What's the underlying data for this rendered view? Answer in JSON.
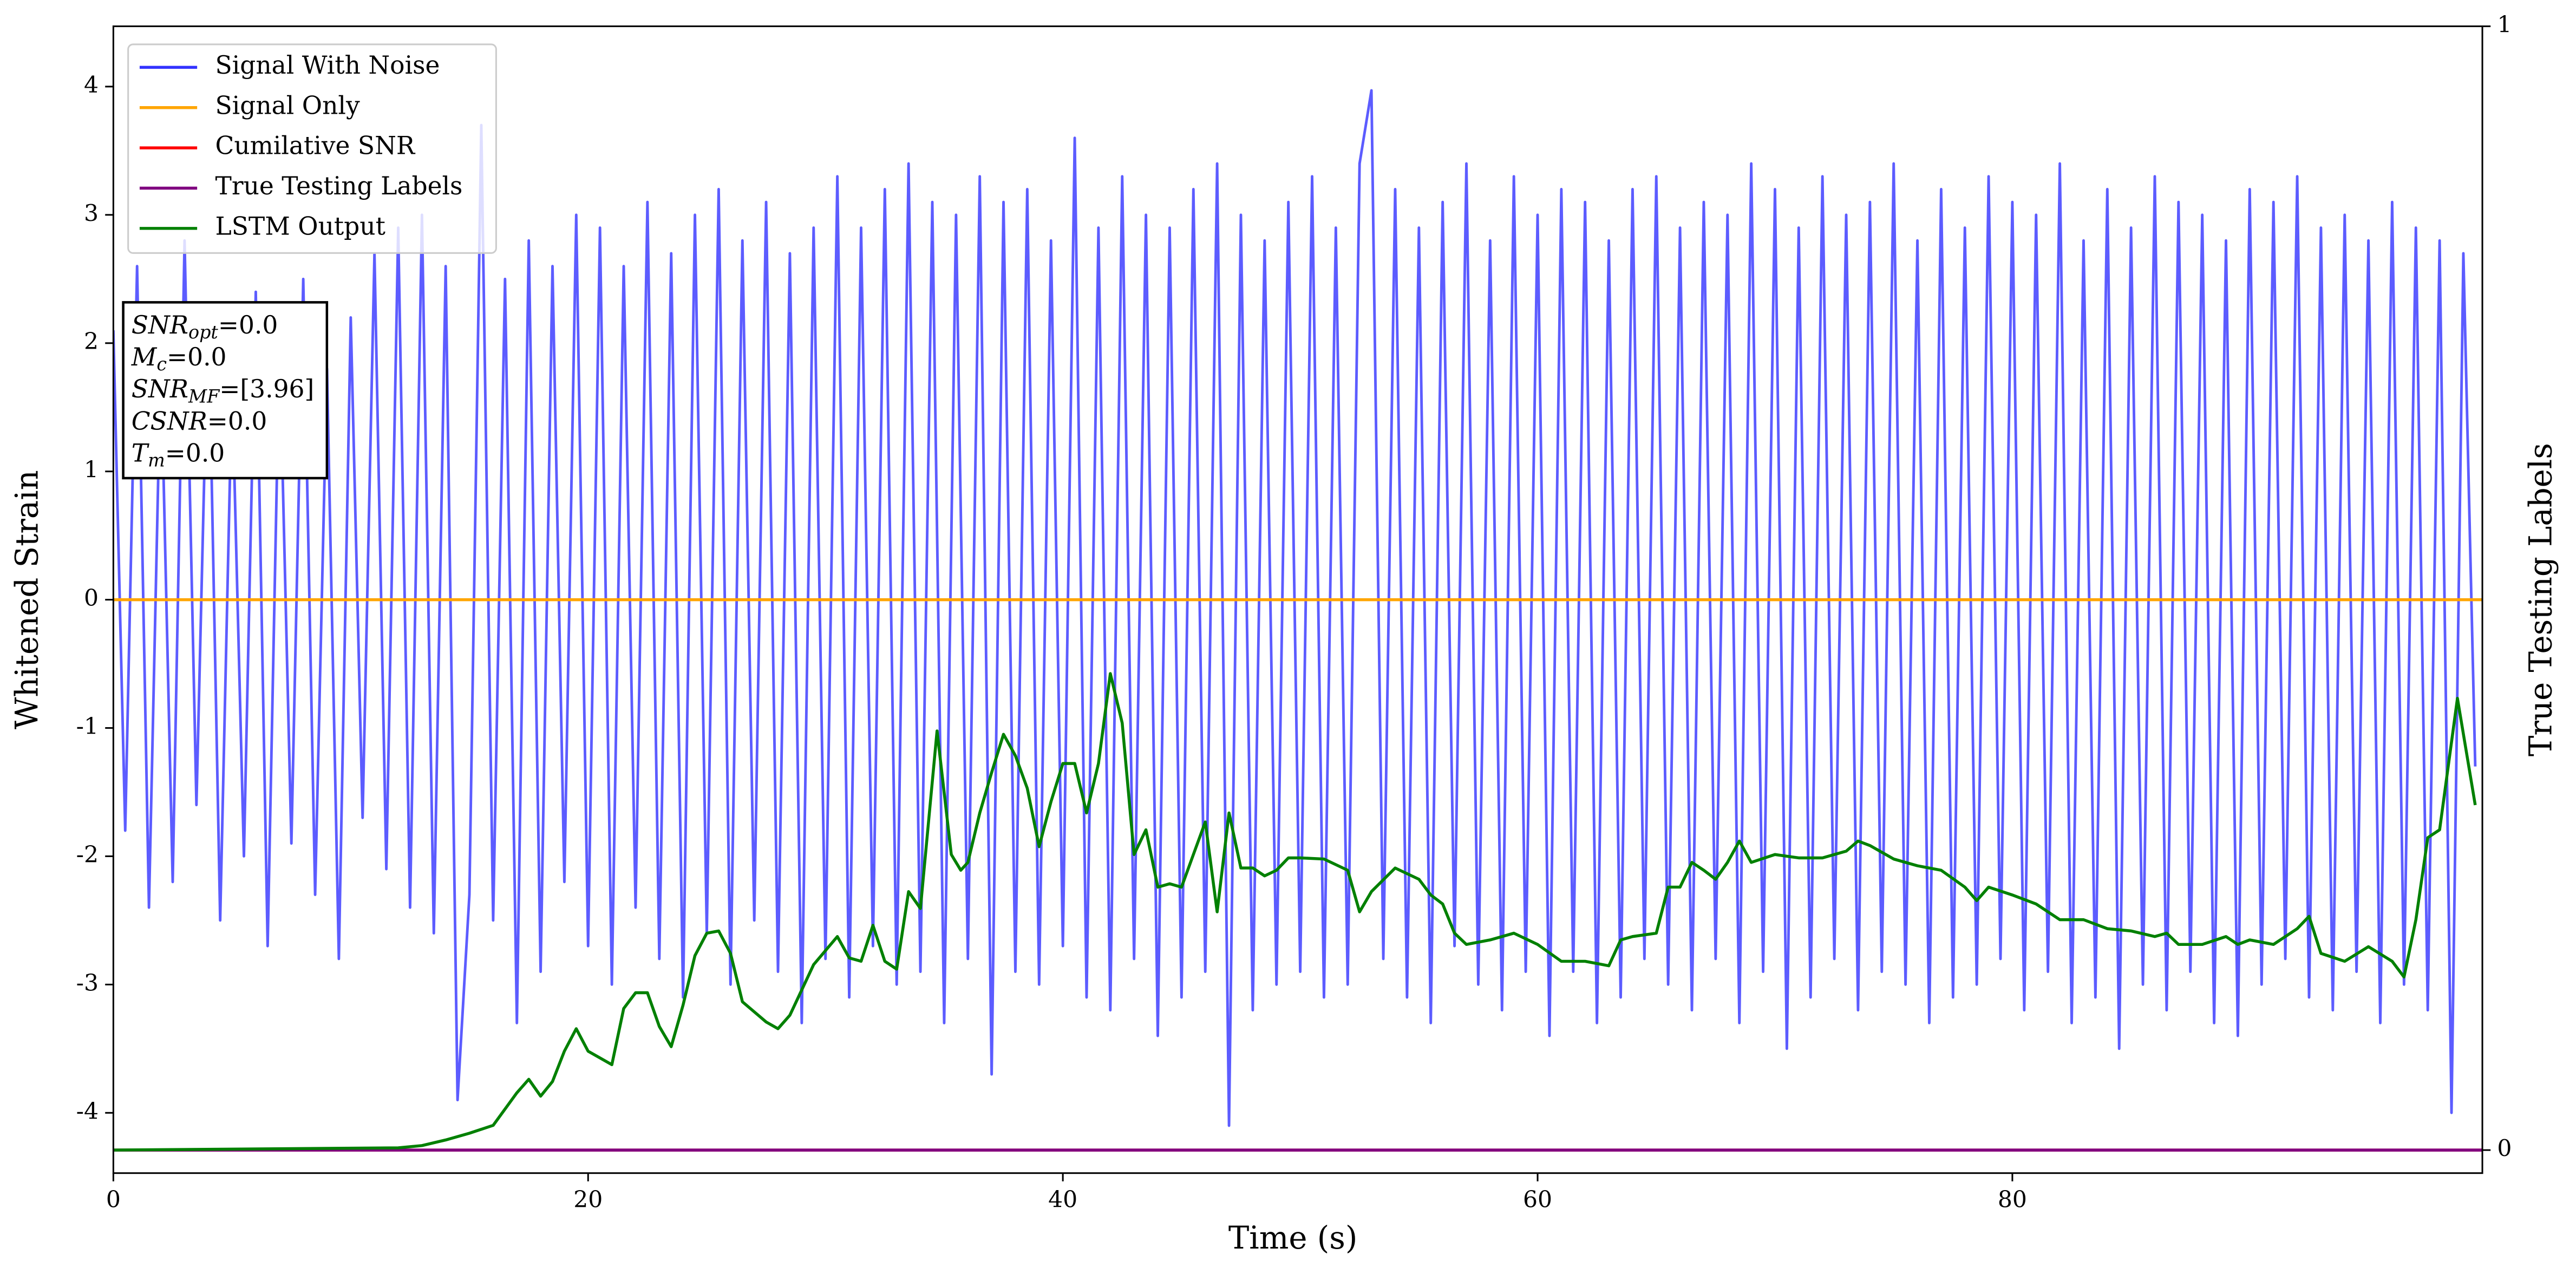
{
  "chart_data": {
    "type": "line",
    "xlabel": "Time (s)",
    "ylabel": "Whitened Strain",
    "y2label": "True Testing Labels",
    "xlim": [
      0,
      99.8
    ],
    "xticks": [
      0,
      20,
      40,
      60,
      80
    ],
    "ylim": [
      -4.47,
      4.47
    ],
    "yticks": [
      -4,
      -3,
      -2,
      -1,
      0,
      1,
      2,
      3,
      4
    ],
    "y2lim": [
      -0.0205,
      1
    ],
    "y2ticks": [
      0,
      1
    ],
    "legend": "upper left",
    "annotation_box": [
      {
        "text": "SNR",
        "sub": "opt",
        "suffix": "=0.0"
      },
      {
        "text": "M",
        "sub": "c",
        "suffix": "=0.0"
      },
      {
        "text": "SNR",
        "sub": "MF",
        "suffix": "=[3.96]"
      },
      {
        "text": "CSNR",
        "suffix": "=0.0"
      },
      {
        "text": "T",
        "sub": "m",
        "suffix": "=0.0"
      }
    ],
    "series": [
      {
        "name": "Signal With Noise",
        "color": "#3333ff",
        "step_x": 0.5,
        "values": [
          2.1,
          -1.8,
          2.6,
          -2.4,
          1.9,
          -2.2,
          2.8,
          -1.6,
          2.3,
          -2.5,
          1.7,
          -2.0,
          2.4,
          -2.7,
          2.0,
          -1.9,
          2.5,
          -2.3,
          1.8,
          -2.8,
          2.2,
          -1.7,
          2.7,
          -2.1,
          2.9,
          -2.4,
          3.0,
          -2.6,
          2.6,
          -3.9,
          -2.3,
          3.7,
          -2.5,
          2.5,
          -3.3,
          2.8,
          -2.9,
          2.6,
          -2.2,
          3.0,
          -2.7,
          2.9,
          -3.0,
          2.6,
          -2.4,
          3.1,
          -2.8,
          2.7,
          -3.1,
          3.0,
          -2.6,
          3.2,
          -3.0,
          2.8,
          -2.5,
          3.1,
          -2.9,
          2.7,
          -3.3,
          2.9,
          -2.8,
          3.3,
          -3.1,
          2.9,
          -2.7,
          3.2,
          -3.0,
          3.4,
          -2.9,
          3.1,
          -3.3,
          3.0,
          -2.8,
          3.3,
          -3.7,
          3.1,
          -2.9,
          3.2,
          -3.0,
          2.8,
          -2.7,
          3.6,
          -3.1,
          2.9,
          -3.2,
          3.3,
          -2.8,
          3.0,
          -3.4,
          2.9,
          -3.1,
          3.2,
          -2.9,
          3.4,
          -4.1,
          3.0,
          -3.2,
          2.8,
          -3.0,
          3.1,
          -2.9,
          3.3,
          -3.1,
          2.9,
          -3.0,
          3.4,
          3.97,
          -2.8,
          3.2,
          -3.1,
          2.9,
          -3.3,
          3.1,
          -2.7,
          3.4,
          -3.0,
          2.8,
          -3.2,
          3.3,
          -2.9,
          3.0,
          -3.4,
          3.2,
          -2.9,
          3.1,
          -3.3,
          2.8,
          -3.1,
          3.2,
          -2.8,
          3.3,
          -3.0,
          2.9,
          -3.2,
          3.1,
          -2.8,
          3.0,
          -3.3,
          3.4,
          -2.9,
          3.2,
          -3.5,
          2.9,
          -3.1,
          3.3,
          -2.8,
          3.0,
          -3.2,
          3.1,
          -2.9,
          3.4,
          -3.0,
          2.8,
          -3.3,
          3.2,
          -3.1,
          2.9,
          -3.0,
          3.3,
          -2.8,
          3.1,
          -3.2,
          3.0,
          -2.9,
          3.4,
          -3.3,
          2.8,
          -3.1,
          3.2,
          -3.5,
          2.9,
          -3.0,
          3.3,
          -3.2,
          3.1,
          -2.9,
          3.0,
          -3.3,
          2.8,
          -3.4,
          3.2,
          -3.0,
          3.1,
          -2.8,
          3.3,
          -3.1,
          2.9,
          -3.2,
          3.0,
          -2.9,
          2.8,
          -3.3,
          3.1,
          -3.0,
          2.9,
          -3.2,
          2.8,
          -4.0,
          2.7,
          -1.3
        ]
      },
      {
        "name": "Signal Only",
        "color": "#ffa500",
        "x": [
          0,
          99.8
        ],
        "values": [
          0,
          0
        ]
      },
      {
        "name": "Cumilative SNR",
        "color": "#ff0000",
        "axis": "y2",
        "x": [
          0,
          99.8
        ],
        "values": [
          0,
          0
        ]
      },
      {
        "name": "True Testing Labels",
        "color": "#800080",
        "axis": "y2",
        "x": [
          0,
          99.8
        ],
        "values": [
          0,
          0
        ]
      },
      {
        "name": "LSTM Output",
        "color": "#008000",
        "axis": "y2",
        "x": [
          0,
          12,
          13,
          14,
          15,
          16,
          17,
          17.5,
          18,
          18.5,
          19,
          19.5,
          20,
          21,
          21.5,
          22,
          22.5,
          23,
          23.5,
          24,
          24.5,
          25,
          25.5,
          26,
          26.5,
          27.5,
          28,
          28.5,
          29.5,
          30.5,
          31,
          31.5,
          32,
          32.5,
          33,
          33.5,
          34,
          34.7,
          35.3,
          35.7,
          36,
          36.5,
          37,
          37.5,
          38,
          38.5,
          39,
          39.5,
          40,
          40.5,
          41,
          41.5,
          42,
          42.5,
          43,
          43.5,
          44,
          44.5,
          45,
          45.5,
          46,
          46.5,
          47,
          47.5,
          48,
          48.5,
          49,
          49.5,
          50,
          51,
          52,
          52.5,
          53,
          54,
          55,
          55.5,
          56,
          56.5,
          57,
          58,
          59,
          60,
          61,
          62,
          63,
          63.5,
          64,
          65,
          65.5,
          66,
          66.5,
          67,
          67.5,
          68,
          68.5,
          69,
          70,
          71,
          72,
          73,
          73.5,
          74,
          75,
          76,
          77,
          78,
          78.5,
          79,
          80,
          81,
          82,
          83,
          84,
          85,
          86,
          86.5,
          87,
          88,
          89,
          89.5,
          90,
          91,
          92,
          92.5,
          93,
          94,
          95,
          96,
          96.5,
          97,
          97.5,
          98,
          98.75,
          99.5
        ],
        "values": [
          0,
          0.002,
          0.004,
          0.009,
          0.015,
          0.022,
          0.051,
          0.063,
          0.048,
          0.061,
          0.088,
          0.108,
          0.088,
          0.076,
          0.126,
          0.14,
          0.14,
          0.11,
          0.092,
          0.129,
          0.173,
          0.193,
          0.195,
          0.175,
          0.132,
          0.114,
          0.108,
          0.12,
          0.165,
          0.19,
          0.171,
          0.168,
          0.2,
          0.168,
          0.161,
          0.23,
          0.215,
          0.373,
          0.263,
          0.249,
          0.256,
          0.3,
          0.336,
          0.37,
          0.351,
          0.322,
          0.27,
          0.31,
          0.344,
          0.344,
          0.3,
          0.344,
          0.424,
          0.38,
          0.263,
          0.285,
          0.234,
          0.237,
          0.234,
          0.263,
          0.292,
          0.212,
          0.3,
          0.251,
          0.251,
          0.244,
          0.249,
          0.26,
          0.26,
          0.259,
          0.249,
          0.212,
          0.23,
          0.251,
          0.241,
          0.227,
          0.219,
          0.193,
          0.183,
          0.187,
          0.193,
          0.183,
          0.168,
          0.168,
          0.164,
          0.187,
          0.19,
          0.193,
          0.234,
          0.234,
          0.256,
          0.249,
          0.241,
          0.256,
          0.275,
          0.256,
          0.263,
          0.26,
          0.26,
          0.266,
          0.275,
          0.271,
          0.259,
          0.253,
          0.249,
          0.234,
          0.222,
          0.234,
          0.227,
          0.219,
          0.205,
          0.205,
          0.197,
          0.195,
          0.19,
          0.193,
          0.183,
          0.183,
          0.19,
          0.183,
          0.187,
          0.183,
          0.197,
          0.208,
          0.175,
          0.168,
          0.181,
          0.168,
          0.154,
          0.205,
          0.278,
          0.285,
          0.402,
          0.307
        ]
      }
    ]
  }
}
